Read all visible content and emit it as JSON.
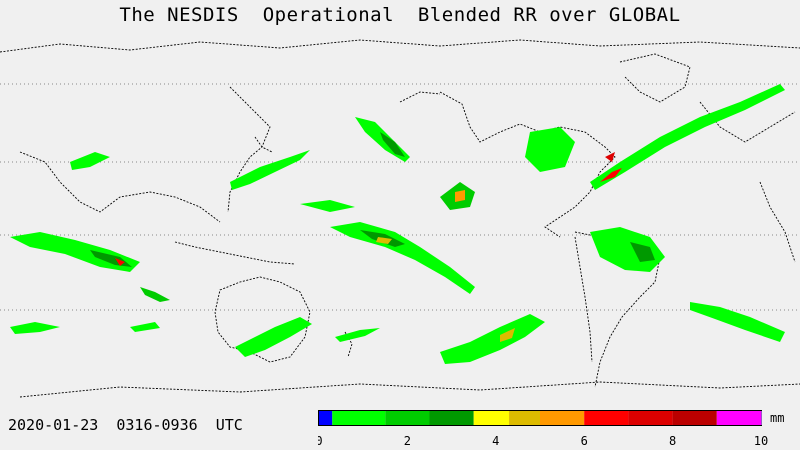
{
  "title": "The NESDIS  Operational  Blended RR over GLOBAL",
  "timestamp": "2020-01-23  0316-0936  UTC",
  "legend": {
    "unit": "mm",
    "ticks": [
      "0",
      "2",
      "4",
      "6",
      "8",
      "10"
    ],
    "tick_values": [
      0,
      2,
      4,
      6,
      8,
      10
    ],
    "max_value": 10,
    "colors": [
      "#0000ff",
      "#00ff00",
      "#00cc00",
      "#009900",
      "#ffff00",
      "#ddbb00",
      "#ff9900",
      "#ff0000",
      "#dd0000",
      "#bb0000",
      "#ff00ff",
      "#9955cc"
    ],
    "bins": [
      0,
      0.3,
      1.5,
      2.5,
      3.5,
      4.3,
      5.0,
      6.0,
      7.0,
      8.0,
      9.0,
      10.0
    ]
  },
  "map": {
    "background": "#f0f0f0",
    "coastline_color": "#000000",
    "gridline_color": "#888888"
  }
}
